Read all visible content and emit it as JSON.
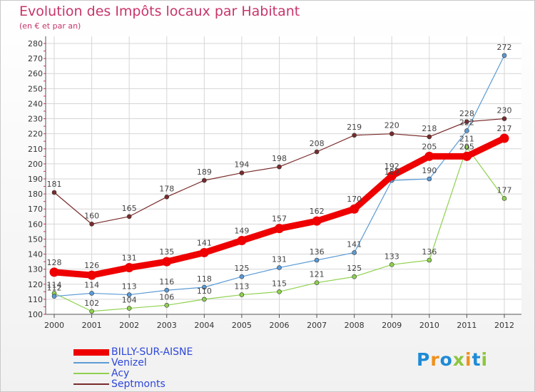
{
  "chart_data": {
    "type": "line",
    "title": "Evolution des Impôts locaux par Habitant",
    "subtitle": "(en € et par an)",
    "x": [
      "2000",
      "2001",
      "2002",
      "2003",
      "2004",
      "2005",
      "2006",
      "2007",
      "2008",
      "2009",
      "2010",
      "2011",
      "2012"
    ],
    "ylim": [
      100,
      280
    ],
    "yticks": [
      100,
      110,
      120,
      130,
      140,
      150,
      160,
      170,
      180,
      190,
      200,
      210,
      220,
      230,
      240,
      250,
      260,
      270,
      280
    ],
    "ytick_labels": [
      "100",
      "110",
      "120",
      "130",
      "140",
      "150",
      "160",
      "170",
      "180",
      "190",
      "200",
      "210",
      "220",
      "230",
      "240",
      "250",
      "260",
      "270",
      "280"
    ],
    "series": [
      {
        "name": "BILLY-SUR-AISNE",
        "color": "#ee0000",
        "values": [
          128,
          126,
          131,
          135,
          141,
          149,
          157,
          162,
          170,
          192,
          205,
          205,
          217
        ],
        "labels": [
          "128",
          "126",
          "131",
          "135",
          "141",
          "149",
          "157",
          "162",
          "170",
          "192",
          "205",
          "205",
          "217"
        ]
      },
      {
        "name": "Venizel",
        "color": "#5b9bd5",
        "values": [
          112,
          114,
          113,
          116,
          118,
          125,
          131,
          136,
          141,
          189,
          190,
          222,
          272
        ],
        "labels": [
          "112",
          "114",
          "113",
          "116",
          "118",
          "125",
          "131",
          "136",
          "141",
          "189",
          "190",
          "222",
          "272"
        ]
      },
      {
        "name": "Acy",
        "color": "#8fd14f",
        "values": [
          114,
          102,
          104,
          106,
          110,
          113,
          115,
          121,
          125,
          133,
          136,
          211,
          177
        ],
        "labels": [
          "114",
          "102",
          "104",
          "106",
          "110",
          "113",
          "115",
          "121",
          "125",
          "133",
          "136",
          "211",
          "177"
        ]
      },
      {
        "name": "Septmonts",
        "color": "#7a2b2b",
        "values": [
          181,
          160,
          165,
          178,
          189,
          194,
          198,
          208,
          219,
          220,
          218,
          228,
          230
        ],
        "labels": [
          "181",
          "160",
          "165",
          "178",
          "189",
          "194",
          "198",
          "208",
          "219",
          "220",
          "218",
          "228",
          "230"
        ]
      }
    ]
  },
  "logo": {
    "letters": [
      "P",
      "r",
      "o",
      "x",
      "i",
      "t",
      "i"
    ]
  }
}
